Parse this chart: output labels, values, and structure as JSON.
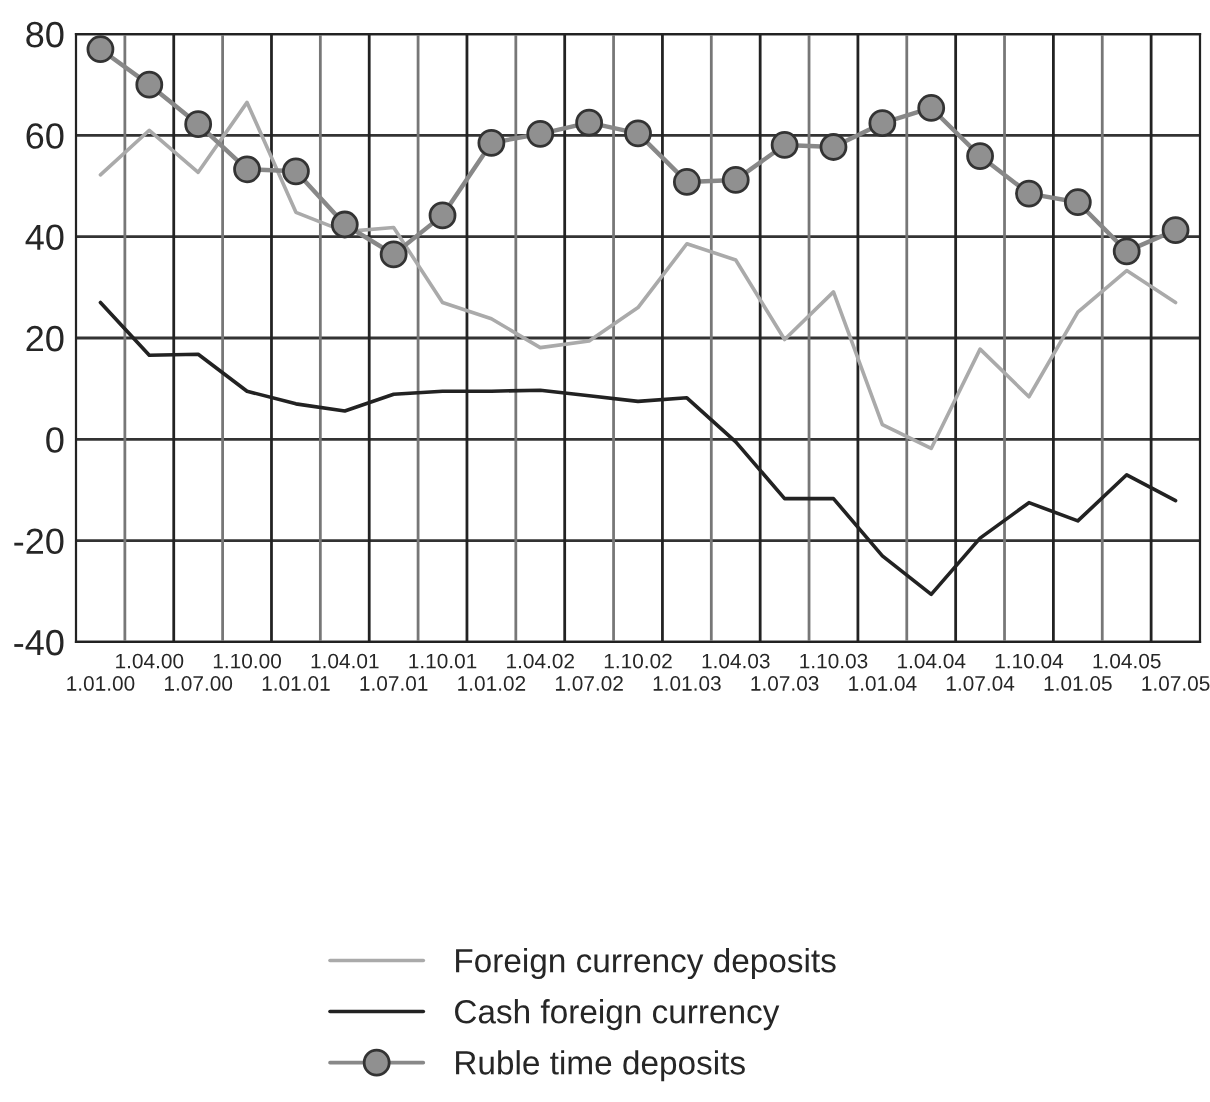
{
  "chart_data": {
    "type": "line",
    "categories": [
      "1.01.00",
      "1.04.00",
      "1.07.00",
      "1.10.00",
      "1.01.01",
      "1.04.01",
      "1.07.01",
      "1.10.01",
      "1.01.02",
      "1.04.02",
      "1.07.02",
      "1.10.02",
      "1.01.03",
      "1.04.03",
      "1.07.03",
      "1.10.03",
      "1.01.04",
      "1.04.04",
      "1.07.04",
      "1.10.04",
      "1.01.05",
      "1.04.05",
      "1.07.05"
    ],
    "series": [
      {
        "name": "Foreign currency deposits",
        "color": "#aaaaaa",
        "marker": "none",
        "values": [
          52.2,
          61,
          52.7,
          66.5,
          44.8,
          41,
          41.8,
          27,
          23.8,
          18.1,
          19.4,
          26,
          38.6,
          35.4,
          19.7,
          29.1,
          2.9,
          -1.8,
          17.8,
          8.4,
          25.1,
          33.3,
          27
        ]
      },
      {
        "name": "Cash foreign currency",
        "color": "#222222",
        "marker": "none",
        "values": [
          27,
          16.6,
          16.8,
          9.5,
          7,
          5.6,
          8.9,
          9.5,
          9.5,
          9.7,
          8.6,
          7.5,
          8.2,
          -0.5,
          -11.7,
          -11.7,
          -23,
          -30.6,
          -19.5,
          -12.5,
          -16.1,
          -7,
          -12.1
        ]
      },
      {
        "name": "Ruble time deposits",
        "color": "#888888",
        "marker": "circle",
        "values": [
          77,
          70,
          62.2,
          53.3,
          52.9,
          42.4,
          36.5,
          44.2,
          58.5,
          60.3,
          62.5,
          60.4,
          50.8,
          51.2,
          58.1,
          57.7,
          62.4,
          65.4,
          55.9,
          48.5,
          46.8,
          37.1,
          41.3
        ]
      }
    ],
    "ylim": [
      -40,
      80
    ],
    "yticks": [
      -40,
      -20,
      0,
      20,
      40,
      60,
      80
    ],
    "grid": true,
    "legend": "bottom"
  }
}
